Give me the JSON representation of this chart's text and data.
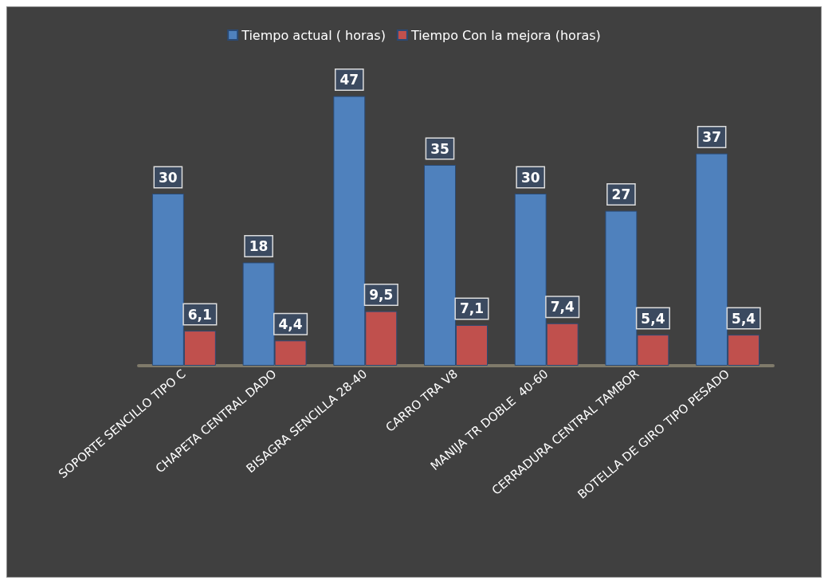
{
  "chart_data": {
    "type": "bar",
    "categories": [
      "SOPORTE SENCILLO TIPO C",
      "CHAPETA CENTRAL DADO",
      "BISAGRA SENCILLA 28-40",
      "CARRO TRA V8",
      "MANIJA TR DOBLE  40-60",
      "CERRADURA CENTRAL TAMBOR",
      "BOTELLA DE GIRO TIPO PESADO"
    ],
    "series": [
      {
        "name": "Tiempo actual ( horas)",
        "color": "#4f81bd",
        "values": [
          30,
          18,
          47,
          35,
          30,
          27,
          37
        ],
        "value_labels": [
          "30",
          "18",
          "47",
          "35",
          "30",
          "27",
          "37"
        ]
      },
      {
        "name": "Tiempo Con la mejora (horas)",
        "color": "#c0504d",
        "values": [
          6.1,
          4.4,
          9.5,
          7.1,
          7.4,
          5.4,
          5.4
        ],
        "value_labels": [
          "6,1",
          "4,4",
          "9,5",
          "7,1",
          "7,4",
          "5,4",
          "5,4"
        ]
      }
    ],
    "legend": "top"
  }
}
